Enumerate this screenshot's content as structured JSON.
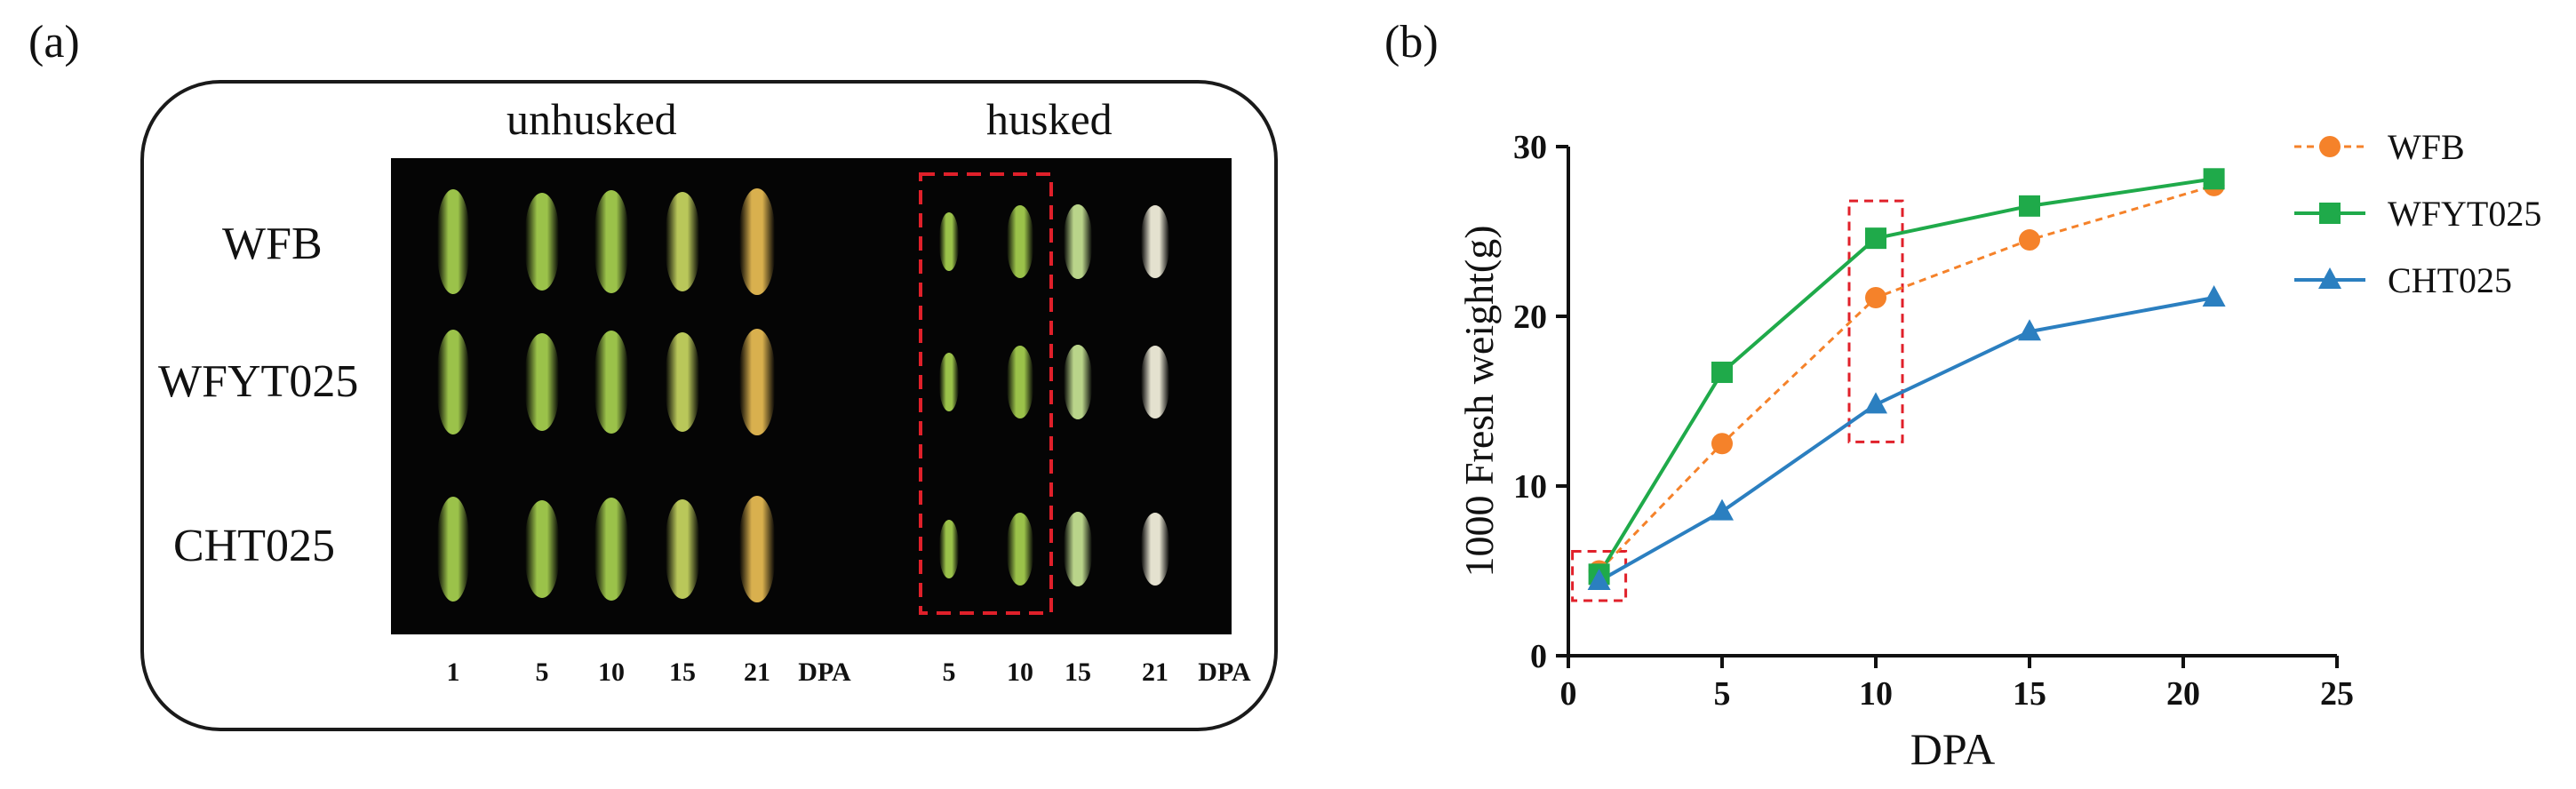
{
  "panel_a": {
    "letter": "(a)",
    "headers": {
      "unhusked": "unhusked",
      "husked": "husked"
    },
    "rows": [
      "WFB",
      "WFYT025",
      "CHT025"
    ],
    "unhusked_dpa": [
      "1",
      "5",
      "10",
      "15",
      "21"
    ],
    "husked_dpa": [
      "5",
      "10",
      "15",
      "21"
    ],
    "dpa_unit": "DPA",
    "colors": {
      "photo_background": "#050505",
      "highlight_box": "#e0202a",
      "grain_green": "#9bc24a",
      "grain_yellow": "#d9b04e",
      "grain_pale": "#e4e1cf"
    }
  },
  "panel_b": {
    "letter": "(b)"
  },
  "chart_data": {
    "type": "line",
    "title": "",
    "xlabel": "DPA",
    "ylabel": "1000 Fresh weight(g)",
    "xlim": [
      0,
      25
    ],
    "ylim": [
      0,
      30
    ],
    "xticks": [
      0,
      5,
      10,
      15,
      20,
      25
    ],
    "yticks": [
      0,
      10,
      20,
      30
    ],
    "x": [
      1,
      5,
      10,
      15,
      21
    ],
    "grid": false,
    "legend_position": "top-right",
    "series": [
      {
        "name": "WFB",
        "values": [
          5.0,
          12.5,
          21.1,
          24.5,
          27.7
        ],
        "color": "#f5822a",
        "marker": "circle",
        "line": "dashed"
      },
      {
        "name": "WFYT025",
        "values": [
          4.8,
          16.7,
          24.6,
          26.5,
          28.1
        ],
        "color": "#1faa4a",
        "marker": "square",
        "line": "solid"
      },
      {
        "name": "CHT025",
        "values": [
          4.4,
          8.5,
          14.8,
          19.1,
          21.1
        ],
        "color": "#2b7fc0",
        "marker": "triangle",
        "line": "solid"
      }
    ],
    "highlight_x": [
      1,
      10
    ]
  }
}
